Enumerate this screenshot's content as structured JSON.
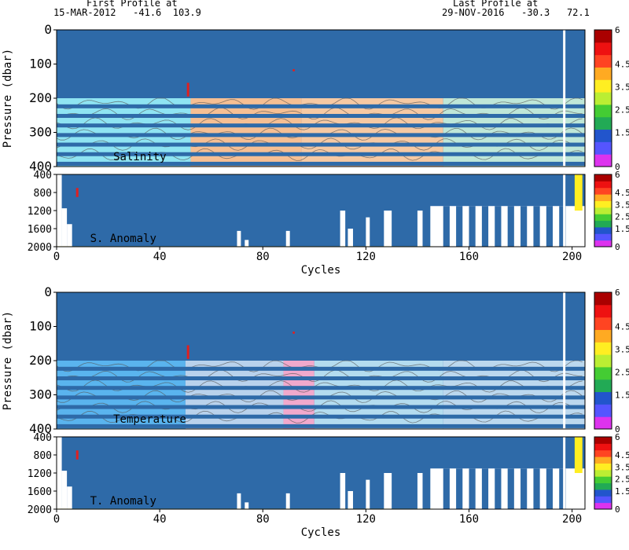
{
  "header": {
    "first_label": "First Profile at",
    "first_value": "15-MAR-2012   -41.6  103.9",
    "last_label": "Last Profile at",
    "last_value": "29-NOV-2016   -30.3   72.1"
  },
  "colors": {
    "background_fill": "#2e6aa8",
    "colorbar": [
      "#dd33ee",
      "#5555ff",
      "#2255cc",
      "#22aa55",
      "#44cc33",
      "#bbee33",
      "#ffee22",
      "#ffaa22",
      "#ff4422",
      "#ee1111",
      "#aa0000"
    ]
  },
  "chart_data": [
    {
      "type": "heatmap",
      "panel": "salinity",
      "label": "Salinity",
      "ylabel": "Pressure (dbar)",
      "xlabel": "",
      "xlim": [
        0,
        205
      ],
      "ylim": [
        400,
        0
      ],
      "yticks": [
        0,
        100,
        200,
        300,
        400
      ],
      "xticks": [],
      "colorbar_ticks": [
        "6",
        "4.5",
        "3.5",
        "2.5",
        "1.5",
        "0"
      ],
      "colorbar_range": [
        0,
        6
      ]
    },
    {
      "type": "heatmap",
      "panel": "salinity-anomaly",
      "label": "S. Anomaly",
      "ylabel": "",
      "xlabel": "Cycles",
      "xlim": [
        0,
        205
      ],
      "ylim": [
        2000,
        400
      ],
      "yticks": [
        400,
        800,
        1200,
        1600,
        2000
      ],
      "xticks": [
        0,
        40,
        80,
        120,
        160,
        200
      ],
      "colorbar_ticks": [
        "6",
        "4.5",
        "3.5",
        "2.5",
        "1.5",
        "0"
      ],
      "colorbar_range": [
        0,
        6
      ]
    },
    {
      "type": "heatmap",
      "panel": "temperature",
      "label": "Temperature",
      "ylabel": "Pressure (dbar)",
      "xlabel": "",
      "xlim": [
        0,
        205
      ],
      "ylim": [
        400,
        0
      ],
      "yticks": [
        0,
        100,
        200,
        300,
        400
      ],
      "xticks": [],
      "colorbar_ticks": [
        "6",
        "4.5",
        "3.5",
        "2.5",
        "1.5",
        "0"
      ],
      "colorbar_range": [
        0,
        6
      ]
    },
    {
      "type": "heatmap",
      "panel": "temperature-anomaly",
      "label": "T. Anomaly",
      "ylabel": "",
      "xlabel": "Cycles",
      "xlim": [
        0,
        205
      ],
      "ylim": [
        2000,
        400
      ],
      "yticks": [
        400,
        800,
        1200,
        1600,
        2000
      ],
      "xticks": [
        0,
        40,
        80,
        120,
        160,
        200
      ],
      "colorbar_ticks": [
        "6",
        "4.5",
        "3.5",
        "2.5",
        "1.5",
        "0"
      ],
      "colorbar_range": [
        0,
        6
      ]
    }
  ]
}
